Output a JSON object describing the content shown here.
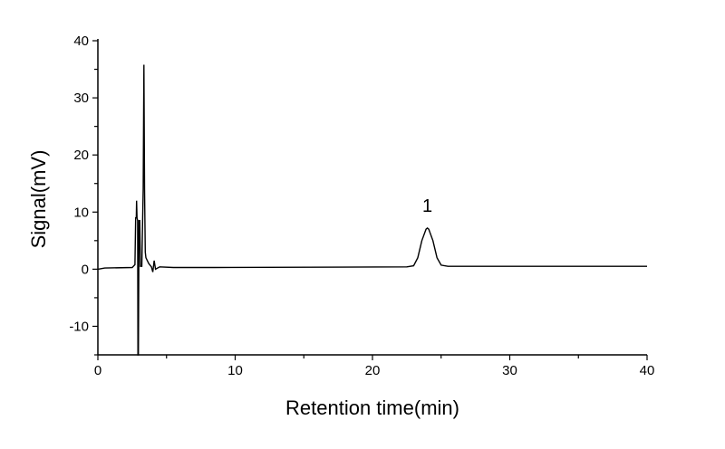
{
  "chart_data": {
    "type": "line",
    "title": "",
    "xlabel": "Retention time(min)",
    "ylabel": "Signal(mV)",
    "xlim": [
      0,
      40
    ],
    "ylim": [
      -15,
      40
    ],
    "xticks": [
      0,
      10,
      20,
      30,
      40
    ],
    "yticks": [
      -10,
      0,
      10,
      20,
      30,
      40
    ],
    "grid": false,
    "line_color": "#000000",
    "annotations": [
      {
        "text": "1",
        "x": 24.0,
        "y": 11.3
      }
    ],
    "series": [
      {
        "points": [
          [
            0,
            0
          ],
          [
            0.5,
            0.2
          ],
          [
            2.5,
            0.3
          ],
          [
            2.7,
            0.8
          ],
          [
            2.75,
            9
          ],
          [
            2.8,
            9
          ],
          [
            2.82,
            12
          ],
          [
            2.85,
            9
          ],
          [
            2.9,
            8.5
          ],
          [
            2.92,
            -15
          ],
          [
            2.95,
            -15
          ],
          [
            3.0,
            8.5
          ],
          [
            3.05,
            8.5
          ],
          [
            3.1,
            0.5
          ],
          [
            3.2,
            0.5
          ],
          [
            3.25,
            7
          ],
          [
            3.3,
            14
          ],
          [
            3.35,
            35.8
          ],
          [
            3.4,
            14
          ],
          [
            3.45,
            3
          ],
          [
            3.5,
            2
          ],
          [
            3.7,
            1
          ],
          [
            3.9,
            0.4
          ],
          [
            4.0,
            -0.5
          ],
          [
            4.1,
            1.5
          ],
          [
            4.2,
            0
          ],
          [
            4.5,
            0.4
          ],
          [
            5.5,
            0.3
          ],
          [
            8.5,
            0.3
          ],
          [
            22.5,
            0.4
          ],
          [
            23,
            0.6
          ],
          [
            23.3,
            2
          ],
          [
            23.6,
            5
          ],
          [
            23.9,
            7
          ],
          [
            24.0,
            7.2
          ],
          [
            24.1,
            7
          ],
          [
            24.4,
            5
          ],
          [
            24.7,
            2
          ],
          [
            25,
            0.7
          ],
          [
            25.5,
            0.5
          ],
          [
            40,
            0.5
          ]
        ]
      }
    ]
  }
}
